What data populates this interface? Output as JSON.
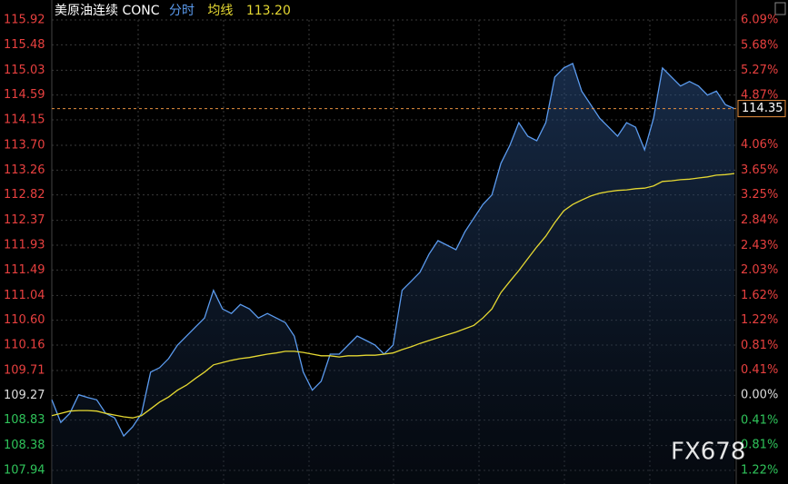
{
  "chart_data": {
    "type": "line",
    "title": "美原油连续 CONC",
    "average_last": {
      "value": 113.2,
      "label": "113.20"
    },
    "last_price": 114.35,
    "watermark": "FX678",
    "ylim": [
      107.94,
      115.92
    ],
    "yticks": [
      115.92,
      115.48,
      115.03,
      114.59,
      114.15,
      {
        "value": 113.7,
        "label": "113.70"
      },
      113.26,
      112.82,
      112.37,
      111.93,
      111.49,
      111.04,
      {
        "value": 110.6,
        "label": "110.60"
      },
      110.16,
      109.71,
      109.27,
      108.83,
      108.38,
      107.94
    ],
    "y2lim": [
      -1.22,
      6.09
    ],
    "y2ticks": [
      {
        "value": 6.09,
        "label": "6.09%"
      },
      {
        "value": 5.68,
        "label": "5.68%"
      },
      {
        "value": 5.27,
        "label": "5.27%"
      },
      {
        "value": 4.87,
        "label": "4.87%"
      },
      {
        "value": 4.06,
        "label": "4.06%"
      },
      {
        "value": 3.65,
        "label": "3.65%"
      },
      {
        "value": 3.25,
        "label": "3.25%"
      },
      {
        "value": 2.84,
        "label": "2.84%"
      },
      {
        "value": 2.43,
        "label": "2.43%"
      },
      {
        "value": 2.03,
        "label": "2.03%"
      },
      {
        "value": 1.62,
        "label": "1.62%"
      },
      {
        "value": 1.22,
        "label": "1.22%"
      },
      {
        "value": 0.81,
        "label": "0.81%"
      },
      {
        "value": 0.41,
        "label": "0.41%"
      },
      {
        "value": 0,
        "label": "0.00%"
      },
      {
        "value": -0.41,
        "label": "0.41%"
      },
      {
        "value": -0.81,
        "label": "0.81%"
      },
      {
        "value": -1.22,
        "label": "1.22%"
      }
    ],
    "grid": true,
    "series": [
      {
        "name": "分时",
        "color": "#5b9bef",
        "values": [
          109.19,
          108.79,
          108.95,
          109.28,
          109.23,
          109.19,
          108.95,
          108.87,
          108.55,
          108.71,
          108.95,
          109.68,
          109.76,
          109.92,
          110.16,
          110.32,
          110.48,
          110.64,
          111.13,
          110.8,
          110.72,
          110.88,
          110.8,
          110.64,
          110.72,
          110.64,
          110.56,
          110.32,
          109.68,
          109.36,
          109.52,
          110.0,
          110.0,
          110.16,
          110.32,
          110.24,
          110.16,
          110.0,
          110.16,
          111.13,
          111.29,
          111.45,
          111.77,
          112.01,
          111.93,
          111.85,
          112.17,
          112.41,
          112.65,
          112.82,
          113.38,
          113.7,
          114.1,
          113.86,
          113.78,
          114.1,
          114.91,
          115.07,
          115.15,
          114.66,
          114.42,
          114.18,
          114.02,
          113.86,
          114.1,
          114.02,
          113.62,
          114.18,
          115.07,
          114.91,
          114.75,
          114.83,
          114.75,
          114.59,
          114.66,
          114.42,
          114.35
        ]
      },
      {
        "name": "均线",
        "color": "#e5d832",
        "values": [
          108.91,
          108.95,
          108.99,
          109.0,
          109.0,
          108.99,
          108.95,
          108.92,
          108.89,
          108.87,
          108.91,
          109.03,
          109.15,
          109.24,
          109.36,
          109.45,
          109.57,
          109.68,
          109.81,
          109.85,
          109.89,
          109.92,
          109.94,
          109.97,
          110.0,
          110.02,
          110.05,
          110.05,
          110.03,
          110.0,
          109.97,
          109.97,
          109.95,
          109.97,
          109.97,
          109.98,
          109.98,
          110.0,
          110.02,
          110.08,
          110.13,
          110.19,
          110.24,
          110.29,
          110.34,
          110.39,
          110.45,
          110.51,
          110.64,
          110.8,
          111.09,
          111.29,
          111.48,
          111.69,
          111.9,
          112.09,
          112.33,
          112.54,
          112.65,
          112.73,
          112.8,
          112.85,
          112.88,
          112.9,
          112.91,
          112.93,
          112.94,
          112.98,
          113.06,
          113.07,
          113.09,
          113.1,
          113.12,
          113.14,
          113.17,
          113.18,
          113.2
        ]
      }
    ]
  }
}
